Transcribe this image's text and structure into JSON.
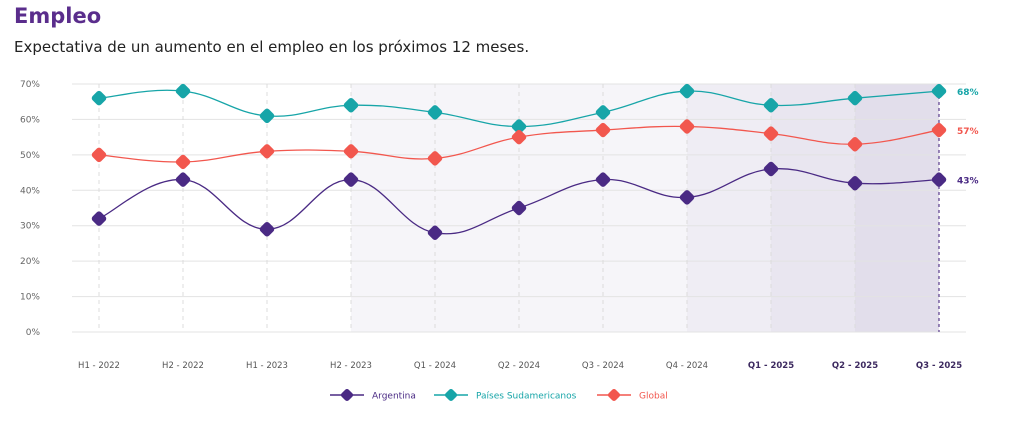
{
  "chart_data": {
    "type": "line",
    "title": "Empleo",
    "subtitle": "Expectativa de un aumento en el empleo en los próximos 12 meses.",
    "xlabel": "",
    "ylabel": "",
    "categories": [
      "H1 - 2022",
      "H2 - 2022",
      "H1 - 2023",
      "H2 - 2023",
      "Q1 - 2024",
      "Q2 - 2024",
      "Q3 - 2024",
      "Q4 - 2024",
      "Q1 - 2025",
      "Q2 - 2025",
      "Q3 - 2025"
    ],
    "bold_categories": [
      "Q1 - 2025",
      "Q2 - 2025",
      "Q3 - 2025"
    ],
    "yticks": [
      "0%",
      "10%",
      "20%",
      "30%",
      "40%",
      "50%",
      "60%",
      "70%"
    ],
    "ylim": [
      0,
      70
    ],
    "grid": true,
    "legend_position": "bottom",
    "series": [
      {
        "name": "Argentina",
        "color": "#4a2a84",
        "values": [
          32,
          43,
          29,
          43,
          28,
          35,
          43,
          38,
          46,
          42,
          43
        ],
        "end_label": "43%"
      },
      {
        "name": "Países Sudamericanos",
        "color": "#17a5a8",
        "values": [
          66,
          68,
          61,
          64,
          62,
          58,
          62,
          68,
          64,
          66,
          68
        ],
        "end_label": "68%"
      },
      {
        "name": "Global",
        "color": "#f2574e",
        "values": [
          50,
          48,
          51,
          51,
          49,
          55,
          57,
          58,
          56,
          53,
          57
        ],
        "end_label": "57%"
      }
    ]
  }
}
